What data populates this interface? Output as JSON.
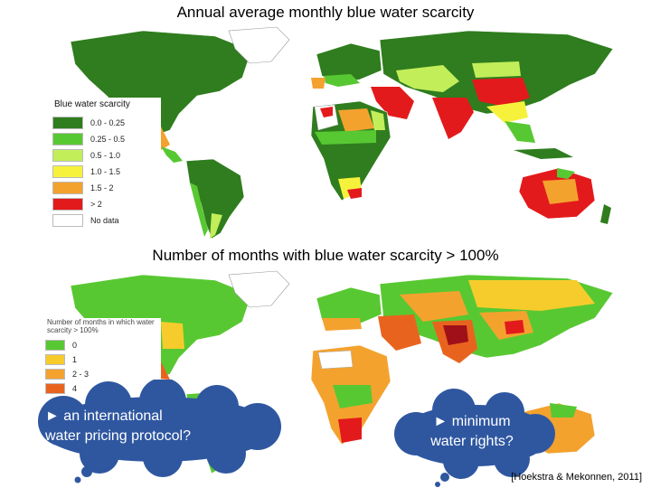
{
  "map1": {
    "title": "Annual average monthly blue water scarcity",
    "legend_title": "Blue water scarcity",
    "legend": [
      {
        "label": "0.0 - 0.25",
        "color": "#2f7d1e"
      },
      {
        "label": "0.25 - 0.5",
        "color": "#58c832"
      },
      {
        "label": "0.5 - 1.0",
        "color": "#c2ee5a"
      },
      {
        "label": "1.0 - 1.5",
        "color": "#f6f23c"
      },
      {
        "label": "1.5 - 2",
        "color": "#f4a22e"
      },
      {
        "label": "> 2",
        "color": "#e31a1c"
      },
      {
        "label": "No data",
        "color": "#ffffff"
      }
    ]
  },
  "map2": {
    "title": "Number of months with blue water scarcity > 100%",
    "legend_title": "Number of months in which water scarcity > 100%",
    "legend": [
      {
        "label": "0",
        "color": "#58c832"
      },
      {
        "label": "1",
        "color": "#f6cc2c"
      },
      {
        "label": "2 - 3",
        "color": "#f4a22e"
      },
      {
        "label": "4",
        "color": "#e8641e"
      }
    ]
  },
  "callouts": {
    "left": {
      "bullet": "►",
      "line1": "an international",
      "line2": "water pricing protocol?"
    },
    "right": {
      "bullet": "►",
      "line1": "minimum",
      "line2": "water rights?"
    }
  },
  "citation": "[Hoekstra & Mekonnen, 2011]"
}
